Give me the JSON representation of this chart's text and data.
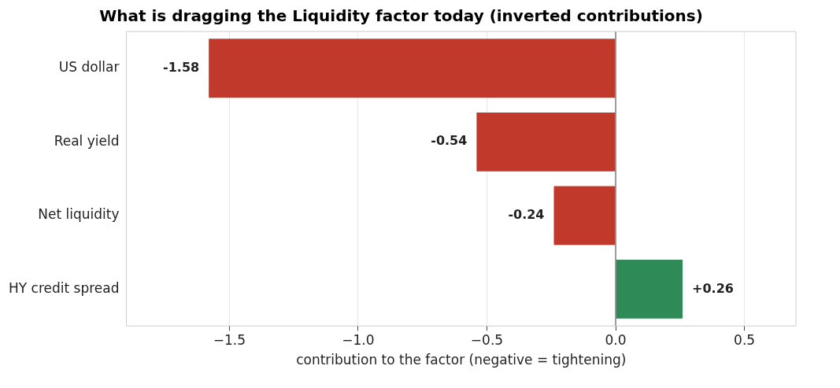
{
  "chart_data": {
    "type": "bar",
    "orientation": "horizontal",
    "title": "What is dragging the Liquidity factor today (inverted contributions)",
    "xlabel": "contribution to the factor (negative = tightening)",
    "categories": [
      "US dollar",
      "Real yield",
      "Net liquidity",
      "HY credit spread"
    ],
    "values": [
      -1.58,
      -0.54,
      -0.24,
      0.26
    ],
    "colors": [
      "#c0392b",
      "#c0392b",
      "#c0392b",
      "#2e8b57"
    ],
    "value_labels": [
      "-1.58",
      "-0.54",
      "-0.24",
      "+0.26"
    ],
    "xlim": [
      -1.9,
      0.7
    ],
    "xticks": [
      {
        "value": -1.5,
        "label": "−1.5"
      },
      {
        "value": -1,
        "label": "−1.0"
      },
      {
        "value": -0.5,
        "label": "−0.5"
      },
      {
        "value": 0,
        "label": "0.0"
      },
      {
        "value": 0.5,
        "label": "0.5"
      }
    ],
    "ref_lines": [
      {
        "axis": "x",
        "value": 0,
        "color": "#808080"
      }
    ],
    "grid": "x",
    "legend": false
  }
}
